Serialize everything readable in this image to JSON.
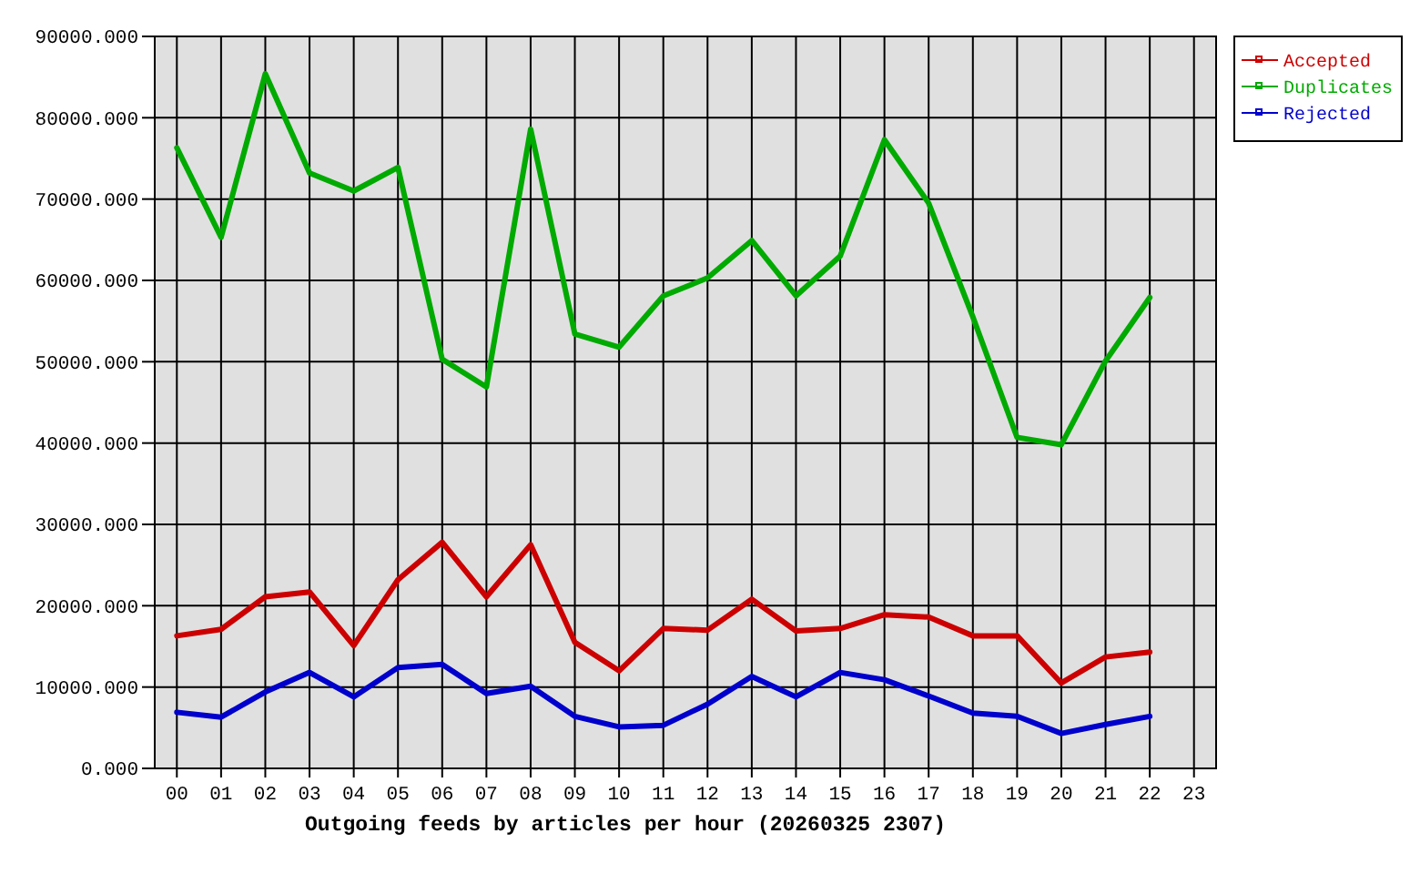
{
  "chart_data": {
    "type": "line",
    "xlabel": "Outgoing feeds by articles per hour (20260325 2307)",
    "categories": [
      "00",
      "01",
      "02",
      "03",
      "04",
      "05",
      "06",
      "07",
      "08",
      "09",
      "10",
      "11",
      "12",
      "13",
      "14",
      "15",
      "16",
      "17",
      "18",
      "19",
      "20",
      "21",
      "22",
      "23"
    ],
    "series": [
      {
        "name": "Accepted",
        "color": "#cc0000",
        "values": [
          16300,
          17100,
          21100,
          21700,
          15100,
          23200,
          27800,
          21100,
          27500,
          15500,
          12000,
          17200,
          17000,
          20800,
          16900,
          17200,
          18900,
          18600,
          16300,
          16300,
          10500,
          13700,
          14300,
          null
        ]
      },
      {
        "name": "Duplicates",
        "color": "#00aa00",
        "values": [
          76300,
          65300,
          85400,
          73200,
          71000,
          73900,
          50300,
          46900,
          78600,
          53400,
          51800,
          58100,
          60300,
          64900,
          58100,
          63000,
          77300,
          69500,
          55500,
          40700,
          39800,
          50100,
          57900,
          null
        ]
      },
      {
        "name": "Rejected",
        "color": "#0000cc",
        "values": [
          6900,
          6300,
          9400,
          11800,
          8800,
          12400,
          12800,
          9200,
          10100,
          6400,
          5100,
          5300,
          7900,
          11300,
          8800,
          11800,
          10900,
          8900,
          6800,
          6400,
          4300,
          5400,
          6400,
          null
        ]
      }
    ],
    "ylim": [
      0,
      90000
    ],
    "yticks": [
      {
        "value": 0,
        "label": "0.000"
      },
      {
        "value": 10000,
        "label": "10000.000"
      },
      {
        "value": 20000,
        "label": "20000.000"
      },
      {
        "value": 30000,
        "label": "30000.000"
      },
      {
        "value": 40000,
        "label": "40000.000"
      },
      {
        "value": 50000,
        "label": "50000.000"
      },
      {
        "value": 60000,
        "label": "60000.000"
      },
      {
        "value": 70000,
        "label": "70000.000"
      },
      {
        "value": 80000,
        "label": "80000.000"
      },
      {
        "value": 90000,
        "label": "90000.000"
      }
    ],
    "grid": true,
    "legend": "top right"
  }
}
